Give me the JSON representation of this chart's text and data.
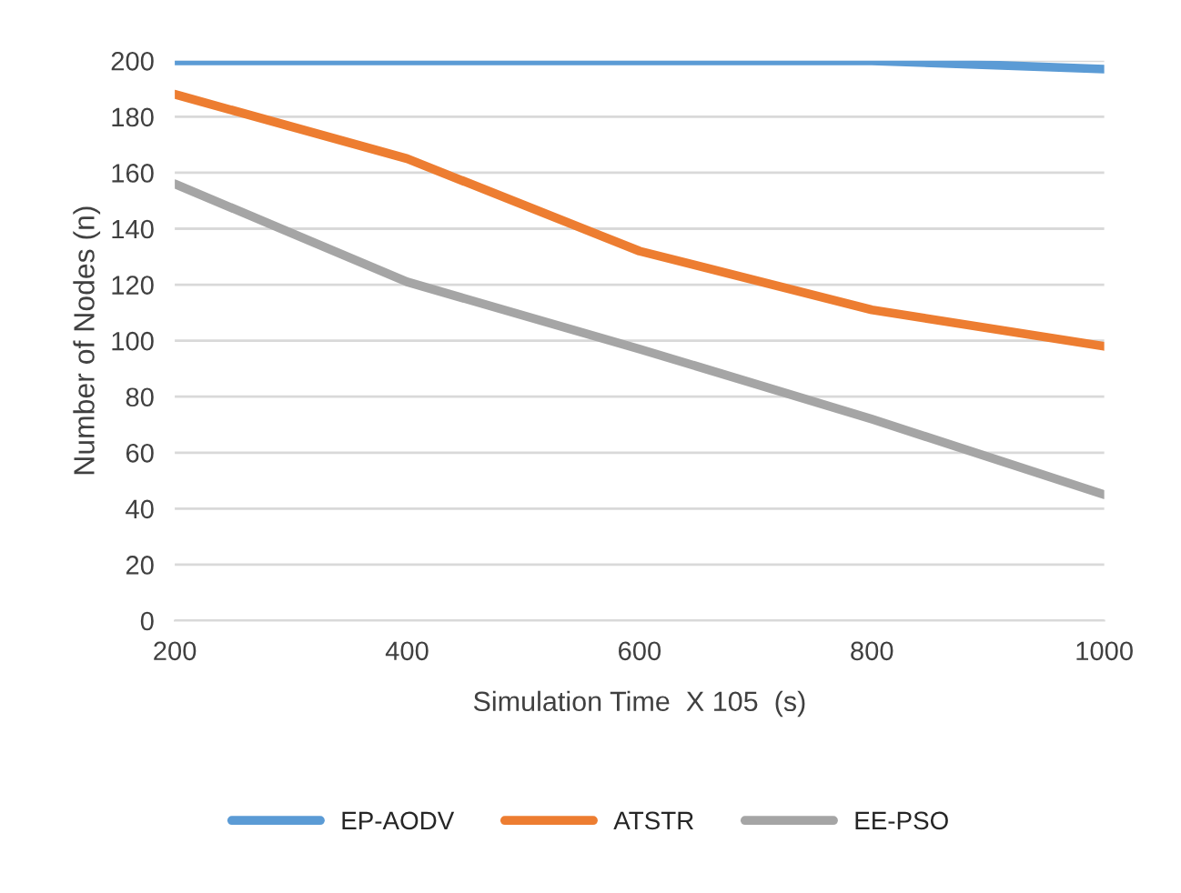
{
  "chart_data": {
    "type": "line",
    "xlabel": "Simulation Time  X 105  (s)",
    "ylabel": "Number of Nodes (n)",
    "x": [
      200,
      400,
      600,
      800,
      1000
    ],
    "series": [
      {
        "name": "EP-AODV",
        "color": "#5b9bd5",
        "values": [
          200,
          200,
          200,
          200,
          197
        ]
      },
      {
        "name": "ATSTR",
        "color": "#ed7d31",
        "values": [
          188,
          165,
          132,
          111,
          98
        ]
      },
      {
        "name": "EE-PSO",
        "color": "#a5a5a5",
        "values": [
          156,
          121,
          97,
          72,
          45
        ]
      }
    ],
    "xlim": [
      200,
      1000
    ],
    "xticks": [
      200,
      400,
      600,
      800,
      1000
    ],
    "ylim": [
      0,
      200
    ],
    "yticks": [
      0,
      20,
      40,
      60,
      80,
      100,
      120,
      140,
      160,
      180,
      200
    ],
    "grid": "y",
    "legend": "bottom",
    "marker": "none",
    "line_style": "solid"
  }
}
